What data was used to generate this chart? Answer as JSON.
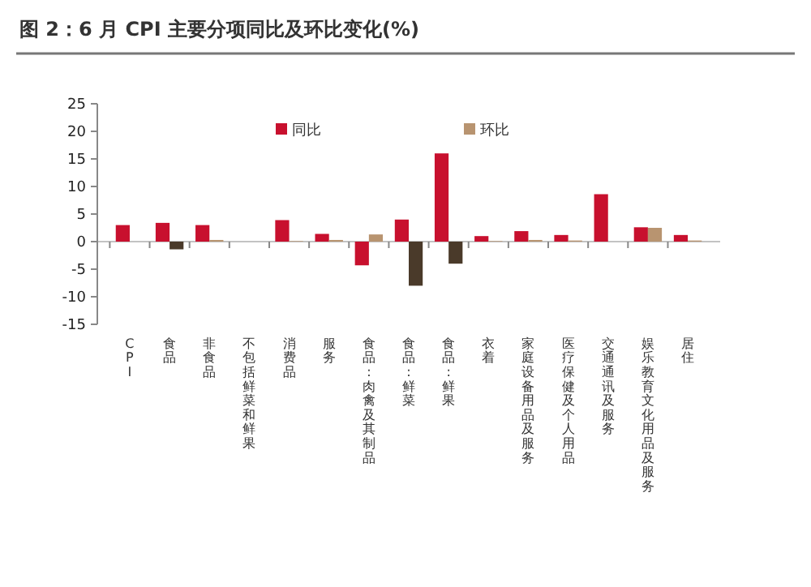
{
  "chart_data": {
    "type": "bar",
    "title": "图 2：6 月 CPI 主要分项同比及环比变化(%)",
    "categories": [
      "CPI",
      "食品",
      "非食品",
      "不包括鲜菜和鲜果",
      "消费品",
      "服务",
      "食品:肉禽及其制品",
      "食品:鲜菜",
      "食品:鲜果",
      "衣着",
      "家庭设备用品及服务",
      "医疗保健及个人用品",
      "交通通讯及服务",
      "娱乐教育文化用品及服务",
      "居住"
    ],
    "series": [
      {
        "name": "同比",
        "color": "#c8102e",
        "values": [
          3.0,
          3.4,
          3.0,
          null,
          3.9,
          1.4,
          -4.3,
          4.0,
          16.0,
          1.0,
          1.9,
          1.2,
          8.6,
          2.6,
          1.2
        ]
      },
      {
        "name": "环比",
        "color": "#b89470",
        "colors": [
          null,
          "#4a3a2a",
          "#b89470",
          null,
          "#b89470",
          "#b89470",
          "#b89470",
          "#4a3a2a",
          "#4a3a2a",
          "#b89470",
          "#b89470",
          "#b89470",
          null,
          "#b89470",
          "#b89470"
        ],
        "values": [
          null,
          -1.4,
          0.3,
          null,
          0.1,
          0.3,
          1.3,
          -8.0,
          -4.0,
          0.1,
          0.3,
          0.2,
          null,
          2.5,
          0.2
        ]
      }
    ],
    "ylim": [
      -15,
      25
    ],
    "yticks": [
      -15,
      -10,
      -5,
      0,
      5,
      10,
      15,
      20,
      25
    ],
    "legend": "top"
  }
}
